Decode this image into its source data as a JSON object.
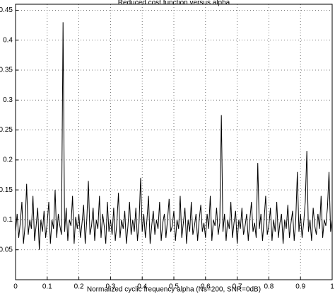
{
  "chart_data": {
    "type": "line",
    "title": "Reduced cost function versus alpha",
    "xlabel": "Normalized cyclic frequency alpha (Ns=200, SNR=0dB)",
    "xlim": [
      0,
      1
    ],
    "ylim": [
      0,
      0.46
    ],
    "xticks": [
      0,
      0.1,
      0.2,
      0.3,
      0.4,
      0.5,
      0.6,
      0.7,
      0.8,
      0.9,
      1
    ],
    "yticks": [
      0.05,
      0.1,
      0.15,
      0.2,
      0.25,
      0.3,
      0.35,
      0.4,
      0.45
    ],
    "grid": true,
    "color": "#000000",
    "x": [
      0,
      0.005,
      0.01,
      0.015,
      0.02,
      0.025,
      0.03,
      0.035,
      0.04,
      0.045,
      0.05,
      0.055,
      0.06,
      0.065,
      0.07,
      0.075,
      0.08,
      0.085,
      0.09,
      0.095,
      0.1,
      0.105,
      0.11,
      0.115,
      0.12,
      0.125,
      0.13,
      0.135,
      0.14,
      0.145,
      0.15,
      0.155,
      0.16,
      0.165,
      0.17,
      0.175,
      0.18,
      0.185,
      0.19,
      0.195,
      0.2,
      0.205,
      0.21,
      0.215,
      0.22,
      0.225,
      0.23,
      0.235,
      0.24,
      0.245,
      0.25,
      0.255,
      0.26,
      0.265,
      0.27,
      0.275,
      0.28,
      0.285,
      0.29,
      0.295,
      0.3,
      0.305,
      0.31,
      0.315,
      0.32,
      0.325,
      0.33,
      0.335,
      0.34,
      0.345,
      0.35,
      0.355,
      0.36,
      0.365,
      0.37,
      0.375,
      0.38,
      0.385,
      0.39,
      0.395,
      0.4,
      0.405,
      0.41,
      0.415,
      0.42,
      0.425,
      0.43,
      0.435,
      0.44,
      0.445,
      0.45,
      0.455,
      0.46,
      0.465,
      0.47,
      0.475,
      0.48,
      0.485,
      0.49,
      0.495,
      0.5,
      0.505,
      0.51,
      0.515,
      0.52,
      0.525,
      0.53,
      0.535,
      0.54,
      0.545,
      0.55,
      0.555,
      0.56,
      0.565,
      0.57,
      0.575,
      0.58,
      0.585,
      0.59,
      0.595,
      0.6,
      0.605,
      0.61,
      0.615,
      0.62,
      0.625,
      0.63,
      0.635,
      0.64,
      0.645,
      0.65,
      0.655,
      0.66,
      0.665,
      0.67,
      0.675,
      0.68,
      0.685,
      0.69,
      0.695,
      0.7,
      0.705,
      0.71,
      0.715,
      0.72,
      0.725,
      0.73,
      0.735,
      0.74,
      0.745,
      0.75,
      0.755,
      0.76,
      0.765,
      0.77,
      0.775,
      0.78,
      0.785,
      0.79,
      0.795,
      0.8,
      0.805,
      0.81,
      0.815,
      0.82,
      0.825,
      0.83,
      0.835,
      0.84,
      0.845,
      0.85,
      0.855,
      0.86,
      0.865,
      0.87,
      0.875,
      0.88,
      0.885,
      0.89,
      0.895,
      0.9,
      0.905,
      0.91,
      0.915,
      0.92,
      0.925,
      0.93,
      0.935,
      0.94,
      0.945,
      0.95,
      0.955,
      0.96,
      0.965,
      0.97,
      0.975,
      0.98,
      0.985,
      0.99,
      0.995,
      1
    ],
    "values": [
      0.08,
      0.11,
      0.07,
      0.095,
      0.13,
      0.06,
      0.09,
      0.16,
      0.075,
      0.1,
      0.085,
      0.14,
      0.065,
      0.09,
      0.12,
      0.05,
      0.1,
      0.08,
      0.115,
      0.07,
      0.095,
      0.13,
      0.06,
      0.1,
      0.085,
      0.15,
      0.07,
      0.11,
      0.09,
      0.075,
      0.43,
      0.08,
      0.12,
      0.065,
      0.1,
      0.09,
      0.14,
      0.06,
      0.105,
      0.085,
      0.11,
      0.07,
      0.095,
      0.125,
      0.06,
      0.1,
      0.165,
      0.075,
      0.09,
      0.12,
      0.065,
      0.1,
      0.085,
      0.14,
      0.07,
      0.11,
      0.09,
      0.06,
      0.13,
      0.08,
      0.1,
      0.075,
      0.12,
      0.065,
      0.095,
      0.145,
      0.07,
      0.1,
      0.085,
      0.115,
      0.06,
      0.09,
      0.13,
      0.075,
      0.1,
      0.08,
      0.12,
      0.065,
      0.095,
      0.17,
      0.08,
      0.11,
      0.07,
      0.1,
      0.14,
      0.06,
      0.09,
      0.115,
      0.075,
      0.1,
      0.085,
      0.13,
      0.065,
      0.095,
      0.11,
      0.07,
      0.1,
      0.135,
      0.08,
      0.09,
      0.115,
      0.065,
      0.1,
      0.085,
      0.14,
      0.07,
      0.095,
      0.12,
      0.06,
      0.1,
      0.08,
      0.13,
      0.075,
      0.09,
      0.11,
      0.065,
      0.1,
      0.125,
      0.08,
      0.095,
      0.07,
      0.11,
      0.085,
      0.14,
      0.065,
      0.1,
      0.09,
      0.12,
      0.075,
      0.095,
      0.275,
      0.08,
      0.11,
      0.065,
      0.1,
      0.085,
      0.13,
      0.07,
      0.095,
      0.115,
      0.06,
      0.1,
      0.085,
      0.12,
      0.075,
      0.09,
      0.11,
      0.065,
      0.1,
      0.13,
      0.08,
      0.095,
      0.07,
      0.195,
      0.085,
      0.11,
      0.065,
      0.1,
      0.14,
      0.075,
      0.09,
      0.12,
      0.065,
      0.1,
      0.08,
      0.13,
      0.07,
      0.095,
      0.11,
      0.06,
      0.1,
      0.085,
      0.125,
      0.07,
      0.095,
      0.115,
      0.065,
      0.1,
      0.18,
      0.08,
      0.11,
      0.07,
      0.095,
      0.13,
      0.215,
      0.08,
      0.1,
      0.065,
      0.12,
      0.09,
      0.075,
      0.11,
      0.085,
      0.14,
      0.07,
      0.1,
      0.09,
      0.12,
      0.18,
      0.08,
      0.1
    ]
  }
}
